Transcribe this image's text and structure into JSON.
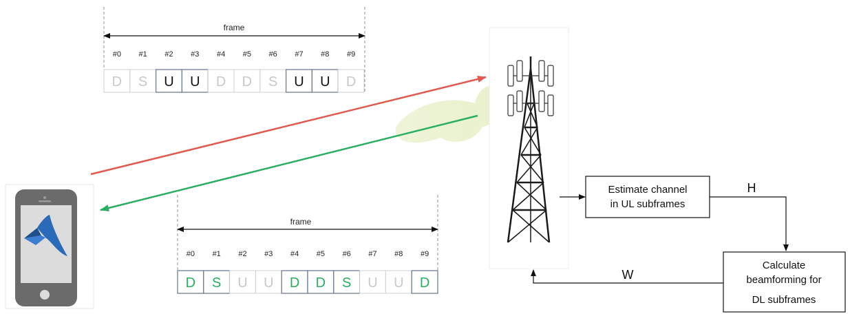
{
  "top_frame": {
    "label": "frame",
    "indices": [
      "#0",
      "#1",
      "#2",
      "#3",
      "#4",
      "#5",
      "#6",
      "#7",
      "#8",
      "#9"
    ],
    "subframes": [
      "D",
      "S",
      "U",
      "U",
      "D",
      "D",
      "S",
      "U",
      "U",
      "D"
    ],
    "active": [
      false,
      false,
      true,
      true,
      false,
      false,
      false,
      true,
      true,
      false
    ]
  },
  "bottom_frame": {
    "label": "frame",
    "indices": [
      "#0",
      "#1",
      "#2",
      "#3",
      "#4",
      "#5",
      "#6",
      "#7",
      "#8",
      "#9"
    ],
    "subframes": [
      "D",
      "S",
      "U",
      "U",
      "D",
      "D",
      "S",
      "U",
      "U",
      "D"
    ],
    "active": [
      true,
      true,
      false,
      false,
      true,
      true,
      true,
      false,
      false,
      true
    ]
  },
  "blocks": {
    "estimate": [
      "Estimate channel",
      "in UL subframes"
    ],
    "calculate": [
      "Calculate",
      "beamforming for",
      "DL subframes"
    ]
  },
  "symbols": {
    "h": "H",
    "w": "W"
  },
  "colors": {
    "uplink": "#e05a4f",
    "downlink": "#27ae60",
    "active_uplink": "#111111",
    "active_downlink": "#27ae60",
    "inactive": "#c8c8c8",
    "beam": "#e4efc2",
    "phone_body": "#6b6b6b",
    "phone_screen": "#dcdcdc",
    "matlab_logo": "#2a6ab8"
  }
}
